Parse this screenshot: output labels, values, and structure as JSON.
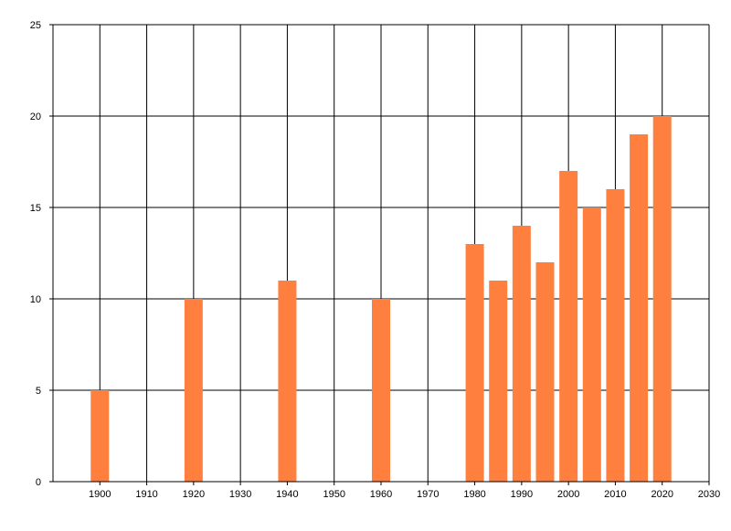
{
  "chart_data": {
    "type": "bar",
    "x": [
      1900,
      1920,
      1940,
      1960,
      1980,
      1985,
      1990,
      1995,
      2000,
      2005,
      2010,
      2015,
      2020
    ],
    "values": [
      5,
      10,
      11,
      10,
      13,
      11,
      14,
      12,
      17,
      15,
      16,
      19,
      20
    ],
    "xlim": [
      1890,
      2030
    ],
    "ylim": [
      0,
      25
    ],
    "x_ticks": [
      "1900",
      "1910",
      "1920",
      "1930",
      "1940",
      "1950",
      "1960",
      "1970",
      "1980",
      "1990",
      "2000",
      "2010",
      "2020",
      "2030"
    ],
    "y_ticks": [
      "0",
      "5",
      "10",
      "15",
      "20",
      "25"
    ],
    "title": "",
    "xlabel": "",
    "ylabel": "",
    "grid": true,
    "legend": "none",
    "bar_color": "#FF7F3F",
    "grid_color": "#000000"
  }
}
